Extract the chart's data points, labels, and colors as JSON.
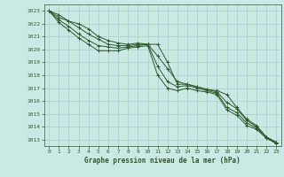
{
  "bg_color": "#cce8e4",
  "grid_color": "#aacfcb",
  "line_color": "#2d5a2d",
  "text_color": "#2d5a2d",
  "xlabel": "Graphe pression niveau de la mer (hPa)",
  "ylim": [
    1012.5,
    1023.5
  ],
  "xlim": [
    -0.5,
    23.5
  ],
  "yticks": [
    1013,
    1014,
    1015,
    1016,
    1017,
    1018,
    1019,
    1020,
    1021,
    1022,
    1023
  ],
  "xticks": [
    0,
    1,
    2,
    3,
    4,
    5,
    6,
    7,
    8,
    9,
    10,
    11,
    12,
    13,
    14,
    15,
    16,
    17,
    18,
    19,
    20,
    21,
    22,
    23
  ],
  "lines": [
    [
      1023.0,
      1022.7,
      1022.2,
      1022.0,
      1021.6,
      1021.0,
      1020.7,
      1020.5,
      1020.4,
      1020.5,
      1020.4,
      1020.4,
      1019.0,
      1017.3,
      1017.3,
      1017.1,
      1016.9,
      1016.8,
      1016.5,
      1015.5,
      1014.6,
      1014.1,
      1013.2,
      1012.7
    ],
    [
      1023.0,
      1022.5,
      1022.2,
      1021.7,
      1021.2,
      1020.8,
      1020.4,
      1020.3,
      1020.3,
      1020.4,
      1020.4,
      1019.5,
      1018.5,
      1017.5,
      1017.3,
      1017.1,
      1016.9,
      1016.7,
      1015.9,
      1015.4,
      1014.5,
      1014.0,
      1013.2,
      1012.8
    ],
    [
      1023.0,
      1022.3,
      1021.8,
      1021.2,
      1020.7,
      1020.3,
      1020.2,
      1020.1,
      1020.2,
      1020.3,
      1020.4,
      1018.7,
      1017.5,
      1017.1,
      1017.2,
      1017.0,
      1016.8,
      1016.6,
      1015.5,
      1015.1,
      1014.3,
      1013.9,
      1013.2,
      1012.8
    ],
    [
      1023.0,
      1022.1,
      1021.5,
      1020.9,
      1020.4,
      1019.9,
      1019.9,
      1019.9,
      1020.1,
      1020.2,
      1020.3,
      1018.0,
      1017.0,
      1016.8,
      1017.0,
      1016.8,
      1016.7,
      1016.5,
      1015.3,
      1014.9,
      1014.1,
      1013.8,
      1013.1,
      1012.7
    ]
  ]
}
